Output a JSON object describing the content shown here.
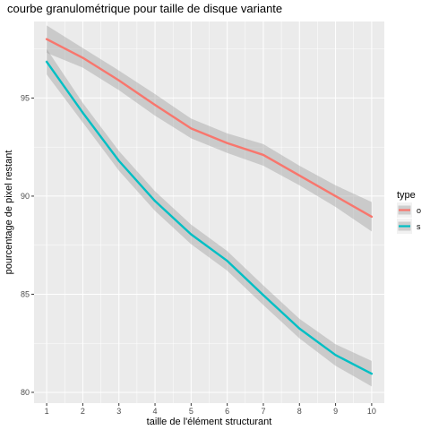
{
  "chart_data": {
    "type": "line",
    "title": "courbe granulométrique pour taille de disque variante",
    "xlabel": "taille de l'élément structurant",
    "ylabel": "pourcentage de pixel restant",
    "x": [
      1,
      2,
      3,
      4,
      5,
      6,
      7,
      8,
      9,
      10
    ],
    "xticks": [
      "1",
      "2",
      "3",
      "4",
      "5",
      "6",
      "7",
      "8",
      "9",
      "10"
    ],
    "yticks": [
      "80",
      "85",
      "90",
      "95"
    ],
    "xlim": [
      0.65,
      10.35
    ],
    "ylim": [
      79.45,
      98.9
    ],
    "grid": true,
    "legend": {
      "title": "type",
      "placement": "right"
    },
    "series": [
      {
        "name": "o",
        "color": "#F8766D",
        "values": [
          98.0,
          97.05,
          95.9,
          94.65,
          93.45,
          92.7,
          92.1,
          91.05,
          90.0,
          88.95
        ],
        "band_lower": [
          97.3,
          96.55,
          95.4,
          94.1,
          92.95,
          92.2,
          91.55,
          90.55,
          89.45,
          88.2
        ],
        "band_upper": [
          98.7,
          97.55,
          96.4,
          95.2,
          93.95,
          93.2,
          92.65,
          91.55,
          90.55,
          89.7
        ]
      },
      {
        "name": "s",
        "color": "#00BFC4",
        "values": [
          96.85,
          94.25,
          91.8,
          89.75,
          88.05,
          86.7,
          84.95,
          83.25,
          81.9,
          80.95
        ],
        "band_lower": [
          96.2,
          93.75,
          91.3,
          89.25,
          87.55,
          86.2,
          84.45,
          82.75,
          81.35,
          80.3
        ],
        "band_upper": [
          97.5,
          94.75,
          92.3,
          90.25,
          88.55,
          87.2,
          85.45,
          83.75,
          82.45,
          81.6
        ]
      }
    ]
  }
}
